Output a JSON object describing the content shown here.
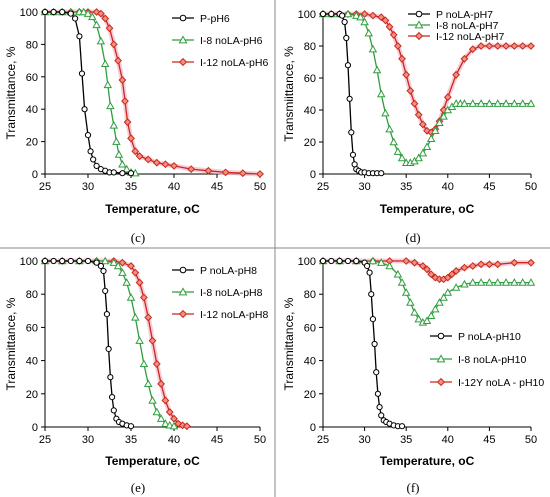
{
  "chart_data": [
    {
      "id": "c",
      "type": "line",
      "panel_label": "(c)",
      "xlabel": "Temperature, ",
      "xlabel_unit": "oC",
      "ylabel": "Transmittance, %",
      "xlim": [
        25,
        50
      ],
      "ylim": [
        0,
        100
      ],
      "xticks": [
        "25",
        "30",
        "35",
        "40",
        "45",
        "50"
      ],
      "yticks": [
        "0",
        "20",
        "40",
        "60",
        "80",
        "100"
      ],
      "legend_position": "top-right",
      "series": [
        {
          "name": "P-pH6",
          "color": "#000000",
          "marker": "circle",
          "x": [
            25,
            26,
            27,
            28,
            28.5,
            29,
            29.3,
            29.6,
            30,
            30.3,
            30.6,
            31,
            31.5,
            32,
            32.5,
            33,
            34,
            35
          ],
          "y": [
            100,
            100,
            100,
            99,
            96,
            85,
            62,
            40,
            24,
            14,
            9,
            5,
            3,
            2,
            1,
            1,
            0.5,
            0.5
          ]
        },
        {
          "name": "I-8 noLA-pH6",
          "color": "#2e9e3e",
          "marker": "triangle",
          "x": [
            25,
            26,
            27,
            28,
            29,
            29.5,
            30,
            30.5,
            31,
            31.5,
            32,
            32.3,
            32.6,
            33,
            33.3,
            33.6,
            34,
            34.5,
            35,
            35.5
          ],
          "y": [
            100,
            100,
            100,
            100,
            100,
            100,
            99,
            97,
            92,
            82,
            68,
            55,
            42,
            30,
            20,
            12,
            6,
            3,
            1,
            0.5
          ]
        },
        {
          "name": "I-12 noLA-pH6",
          "color": "#c8281e",
          "marker": "diamond",
          "x": [
            25,
            26,
            27,
            28,
            29,
            30,
            31,
            31.5,
            32,
            32.5,
            33,
            33.5,
            34,
            34.3,
            34.6,
            35,
            35.5,
            36,
            37,
            38,
            39,
            40,
            42,
            44,
            46,
            48,
            50
          ],
          "y": [
            100,
            100,
            100,
            100,
            100,
            100,
            100,
            99,
            96,
            90,
            80,
            70,
            58,
            45,
            32,
            22,
            14,
            11,
            9,
            7,
            6,
            5,
            3,
            2,
            1,
            0.5,
            0
          ]
        }
      ]
    },
    {
      "id": "d",
      "type": "line",
      "panel_label": "(d)",
      "xlabel": "Temperature, ",
      "xlabel_unit": "oC",
      "ylabel": "Transmiittance, %",
      "xlim": [
        25,
        50
      ],
      "ylim": [
        0,
        100
      ],
      "xticks": [
        "25",
        "30",
        "35",
        "40",
        "45",
        "50"
      ],
      "yticks": [
        "0",
        "20",
        "40",
        "60",
        "80",
        "100"
      ],
      "legend_position": "top-right",
      "series": [
        {
          "name": "P noLA-pH7",
          "color": "#000000",
          "marker": "circle",
          "x": [
            25,
            26,
            27,
            27.3,
            27.6,
            27.8,
            28,
            28.2,
            28.4,
            28.6,
            28.8,
            29,
            29.3,
            29.6,
            30,
            30.5,
            31,
            31.5,
            32
          ],
          "y": [
            100,
            100,
            100,
            99,
            95,
            85,
            68,
            47,
            26,
            12,
            6,
            3,
            2,
            1,
            1,
            0.5,
            0.5,
            0.5,
            0.5
          ]
        },
        {
          "name": "I-8 noLA-pH7",
          "color": "#2e9e3e",
          "marker": "triangle",
          "x": [
            25,
            26,
            27,
            28,
            29,
            29.5,
            30,
            30.5,
            31,
            31.5,
            32,
            32.5,
            33,
            33.5,
            34,
            34.5,
            35,
            35.5,
            36,
            36.5,
            37,
            37.5,
            38,
            38.5,
            39,
            39.5,
            40,
            40.5,
            41,
            41.5,
            42,
            43,
            44,
            45,
            46,
            47,
            48,
            49,
            50
          ],
          "y": [
            100,
            100,
            100,
            100,
            99,
            98,
            95,
            88,
            78,
            65,
            50,
            38,
            28,
            20,
            14,
            10,
            7,
            7,
            8,
            10,
            13,
            17,
            22,
            27,
            32,
            36,
            40,
            42,
            44,
            44,
            44,
            44,
            44,
            44,
            44,
            44,
            44,
            44,
            44
          ]
        },
        {
          "name": "I-12 noLA-pH7",
          "color": "#c8281e",
          "marker": "diamond",
          "x": [
            25,
            26,
            27,
            28,
            29,
            30,
            31,
            32,
            32.5,
            33,
            33.5,
            34,
            34.5,
            35,
            35.5,
            36,
            36.5,
            37,
            37.5,
            38,
            38.5,
            39,
            39.5,
            40,
            41,
            42,
            43,
            44,
            45,
            46,
            47,
            48,
            49,
            50
          ],
          "y": [
            100,
            100,
            100,
            100,
            100,
            100,
            99,
            98,
            96,
            92,
            87,
            80,
            72,
            62,
            52,
            44,
            37,
            31,
            27,
            26,
            28,
            33,
            40,
            48,
            62,
            72,
            78,
            80,
            80,
            80,
            80,
            80,
            80,
            80
          ]
        }
      ]
    },
    {
      "id": "e",
      "type": "line",
      "panel_label": "(e)",
      "xlabel": "Temperature, ",
      "xlabel_unit": "oC",
      "ylabel": "Transmittance, %",
      "xlim": [
        25,
        50
      ],
      "ylim": [
        0,
        100
      ],
      "xticks": [
        "25",
        "30",
        "35",
        "40",
        "45",
        "50"
      ],
      "yticks": [
        "0",
        "20",
        "40",
        "60",
        "80",
        "100"
      ],
      "legend_position": "top-right",
      "series": [
        {
          "name": "P noLA-pH8",
          "color": "#000000",
          "marker": "circle",
          "x": [
            25,
            26,
            27,
            28,
            29,
            30,
            31,
            31.5,
            31.8,
            32,
            32.2,
            32.4,
            32.6,
            32.8,
            33,
            33.3,
            33.6,
            34,
            34.5,
            35
          ],
          "y": [
            100,
            100,
            100,
            100,
            100,
            100,
            99,
            97,
            94,
            82,
            68,
            47,
            30,
            18,
            10,
            5,
            3,
            2,
            1,
            0.5
          ]
        },
        {
          "name": "I-8 noLA-pH8",
          "color": "#2e9e3e",
          "marker": "triangle",
          "x": [
            25,
            27,
            29,
            31,
            32,
            33,
            33.5,
            34,
            34.5,
            35,
            35.5,
            36,
            36.5,
            37,
            37.5,
            38,
            38.5,
            39,
            39.5,
            40
          ],
          "y": [
            100,
            100,
            100,
            100,
            100,
            99,
            97,
            93,
            87,
            78,
            66,
            52,
            38,
            26,
            16,
            9,
            5,
            2,
            1,
            0.5
          ]
        },
        {
          "name": "I-12 noLA-pH8",
          "color": "#c8281e",
          "marker": "diamond",
          "x": [
            25,
            27,
            29,
            31,
            33,
            34,
            35,
            35.5,
            36,
            36.5,
            37,
            37.5,
            38,
            38.5,
            39,
            39.5,
            40,
            40.5,
            41,
            41.5
          ],
          "y": [
            100,
            100,
            100,
            100,
            100,
            99,
            97,
            93,
            87,
            78,
            66,
            52,
            38,
            26,
            16,
            9,
            5,
            2,
            1,
            0.5
          ]
        }
      ]
    },
    {
      "id": "f",
      "type": "line",
      "panel_label": "(f)",
      "xlabel": "Temperature, ",
      "xlabel_unit": "oC",
      "ylabel": "Transmittance, %",
      "xlim": [
        25,
        50
      ],
      "ylim": [
        0,
        100
      ],
      "xticks": [
        "25",
        "30",
        "35",
        "40",
        "45",
        "50"
      ],
      "yticks": [
        "0",
        "20",
        "40",
        "60",
        "80",
        "100"
      ],
      "legend_position": "center-right",
      "series": [
        {
          "name": "P noLA-pH10",
          "color": "#000000",
          "marker": "circle",
          "x": [
            25,
            26,
            27,
            28,
            29,
            30,
            30.3,
            30.6,
            30.8,
            31,
            31.2,
            31.4,
            31.6,
            31.8,
            32,
            32.3,
            32.6,
            33,
            33.5,
            34,
            34.5
          ],
          "y": [
            100,
            100,
            100,
            100,
            100,
            99,
            97,
            93,
            80,
            65,
            50,
            33,
            20,
            12,
            7,
            4,
            3,
            2,
            1,
            0.5,
            0.5
          ]
        },
        {
          "name": "I-8 noLA-pH10",
          "color": "#2e9e3e",
          "marker": "triangle",
          "x": [
            25,
            27,
            29,
            31,
            32,
            33,
            34,
            34.5,
            35,
            35.5,
            36,
            36.5,
            37,
            37.5,
            38,
            38.5,
            39,
            39.5,
            40,
            41,
            42,
            43,
            44,
            45,
            46,
            47,
            48,
            49,
            50
          ],
          "y": [
            100,
            100,
            100,
            100,
            99,
            97,
            92,
            87,
            81,
            75,
            69,
            65,
            63,
            64,
            67,
            71,
            75,
            78,
            81,
            84,
            86,
            87,
            87,
            87,
            87,
            87,
            87,
            87,
            87
          ]
        },
        {
          "name": "I-12Y noLA - pH10",
          "color": "#c8281e",
          "marker": "diamond",
          "x": [
            25,
            27,
            29,
            31,
            33,
            35,
            36,
            37,
            37.5,
            38,
            38.5,
            39,
            39.5,
            40,
            40.5,
            41,
            42,
            43,
            44,
            45,
            46,
            48,
            50
          ],
          "y": [
            100,
            100,
            100,
            100,
            100,
            100,
            99,
            97,
            95,
            92,
            90,
            89,
            89,
            90,
            92,
            94,
            96,
            97,
            98,
            98,
            98,
            99,
            99
          ]
        }
      ]
    }
  ]
}
